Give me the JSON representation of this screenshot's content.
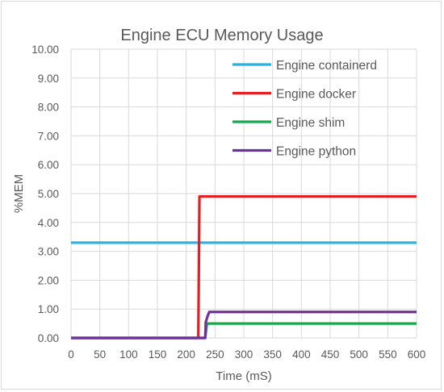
{
  "chart_data": {
    "type": "line",
    "title": "Engine ECU Memory Usage",
    "xlabel": "Time (mS)",
    "ylabel": "%MEM",
    "xlim": [
      0,
      600
    ],
    "ylim": [
      0,
      10
    ],
    "x_ticks": [
      "0",
      "50",
      "100",
      "150",
      "200",
      "250",
      "300",
      "350",
      "400",
      "450",
      "500",
      "550",
      "600"
    ],
    "y_ticks": [
      "0.00",
      "1.00",
      "2.00",
      "3.00",
      "4.00",
      "5.00",
      "6.00",
      "7.00",
      "8.00",
      "9.00",
      "10.00"
    ],
    "grid": true,
    "legend_position": "top-right",
    "series": [
      {
        "name": "Engine containerd",
        "color": "#2eb2e0",
        "x": [
          0,
          600
        ],
        "y": [
          3.3,
          3.3
        ]
      },
      {
        "name": "Engine docker",
        "color": "#e31e24",
        "x": [
          0,
          221,
          223,
          600
        ],
        "y": [
          0,
          0,
          4.9,
          4.9
        ]
      },
      {
        "name": "Engine shim",
        "color": "#18a84a",
        "x": [
          0,
          233,
          236,
          600
        ],
        "y": [
          0,
          0,
          0.5,
          0.5
        ]
      },
      {
        "name": "Engine python",
        "color": "#7030a0",
        "x": [
          0,
          233,
          234,
          237,
          240,
          600
        ],
        "y": [
          0,
          0,
          0.55,
          0.75,
          0.9,
          0.9
        ]
      }
    ]
  }
}
